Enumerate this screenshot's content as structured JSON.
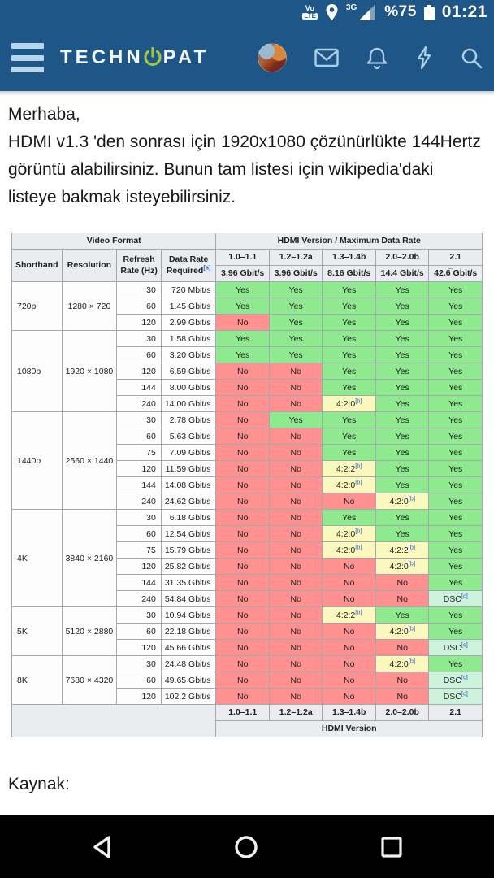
{
  "colors": {
    "app_bar_blue": "#1e5787",
    "icon_tint": "#aecfe8",
    "logo_accent": "#a4c73c",
    "wiki_link_blue": "#3366cc",
    "cell_yes_green": "#8fe98f",
    "cell_no_red": "#ff9191",
    "cell_partial_yellow": "#fbf8be",
    "cell_dsc_teal": "#cdf2dc",
    "table_header_gray": "#eaecf0",
    "table_border_gray": "#a2a9b1",
    "nav_bar_black": "#000000"
  },
  "status_bar": {
    "volte_top": "Vo",
    "volte_bottom": "LTE",
    "network_label": "3G",
    "battery_percent": "%75",
    "time": "01:21"
  },
  "app_header": {
    "brand_left": "TECHN",
    "brand_right": "PAT"
  },
  "post": {
    "greeting": "Merhaba,",
    "body": "HDMI v1.3 'den sonrası için 1920x1080 çözünürlükte 144Hertz görüntü alabilirsiniz. Bunun tam listesi için wikipedia'daki listeye bakmak isteyebilirsiniz.",
    "source_label": "Kaynak:"
  },
  "table": {
    "top_header": {
      "video_format": "Video Format",
      "hdmi": "HDMI Version / Maximum Data Rate"
    },
    "col_headers": {
      "shorthand": "Shorthand",
      "resolution": "Resolution",
      "refresh_l1": "Refresh",
      "refresh_l2": "Rate (Hz)",
      "data_rate_l1": "Data Rate",
      "data_rate_l2": "Required",
      "data_rate_sup": "[a]"
    },
    "versions": [
      "1.0–1.1",
      "1.2–1.2a",
      "1.3–1.4b",
      "2.0–2.0b",
      "2.1"
    ],
    "max_rates": [
      "3.96 Gbit/s",
      "3.96 Gbit/s",
      "8.16 Gbit/s",
      "14.4 Gbit/s",
      "42.6̅ Gbit/s"
    ],
    "cell_types": {
      "Y": {
        "label": "Yes",
        "sup": "",
        "cls": "yes"
      },
      "N": {
        "label": "No",
        "sup": "",
        "cls": "no"
      },
      "420": {
        "label": "4:2:0",
        "sup": "[b]",
        "cls": "partial"
      },
      "422": {
        "label": "4:2:2",
        "sup": "[b]",
        "cls": "partial"
      },
      "DSC": {
        "label": "DSC",
        "sup": "[c]",
        "cls": "dsc"
      }
    },
    "groups": [
      {
        "shorthand": "720p",
        "resolution": "1280 × 720",
        "rows": [
          {
            "hz": "30",
            "rate": "720 Mbit/s",
            "cells": [
              "Y",
              "Y",
              "Y",
              "Y",
              "Y"
            ]
          },
          {
            "hz": "60",
            "rate": "1.45 Gbit/s",
            "cells": [
              "Y",
              "Y",
              "Y",
              "Y",
              "Y"
            ]
          },
          {
            "hz": "120",
            "rate": "2.99 Gbit/s",
            "cells": [
              "N",
              "Y",
              "Y",
              "Y",
              "Y"
            ]
          }
        ]
      },
      {
        "shorthand": "1080p",
        "resolution": "1920 × 1080",
        "rows": [
          {
            "hz": "30",
            "rate": "1.58 Gbit/s",
            "cells": [
              "Y",
              "Y",
              "Y",
              "Y",
              "Y"
            ]
          },
          {
            "hz": "60",
            "rate": "3.20 Gbit/s",
            "cells": [
              "Y",
              "Y",
              "Y",
              "Y",
              "Y"
            ]
          },
          {
            "hz": "120",
            "rate": "6.59 Gbit/s",
            "cells": [
              "N",
              "N",
              "Y",
              "Y",
              "Y"
            ]
          },
          {
            "hz": "144",
            "rate": "8.00 Gbit/s",
            "cells": [
              "N",
              "N",
              "Y",
              "Y",
              "Y"
            ]
          },
          {
            "hz": "240",
            "rate": "14.00 Gbit/s",
            "cells": [
              "N",
              "N",
              "420",
              "Y",
              "Y"
            ]
          }
        ]
      },
      {
        "shorthand": "1440p",
        "resolution": "2560 × 1440",
        "rows": [
          {
            "hz": "30",
            "rate": "2.78 Gbit/s",
            "cells": [
              "N",
              "Y",
              "Y",
              "Y",
              "Y"
            ]
          },
          {
            "hz": "60",
            "rate": "5.63 Gbit/s",
            "cells": [
              "N",
              "N",
              "Y",
              "Y",
              "Y"
            ]
          },
          {
            "hz": "75",
            "rate": "7.09 Gbit/s",
            "cells": [
              "N",
              "N",
              "Y",
              "Y",
              "Y"
            ]
          },
          {
            "hz": "120",
            "rate": "11.59 Gbit/s",
            "cells": [
              "N",
              "N",
              "422",
              "Y",
              "Y"
            ]
          },
          {
            "hz": "144",
            "rate": "14.08 Gbit/s",
            "cells": [
              "N",
              "N",
              "420",
              "Y",
              "Y"
            ]
          },
          {
            "hz": "240",
            "rate": "24.62 Gbit/s",
            "cells": [
              "N",
              "N",
              "N",
              "420",
              "Y"
            ]
          }
        ]
      },
      {
        "shorthand": "4K",
        "resolution": "3840 × 2160",
        "rows": [
          {
            "hz": "30",
            "rate": "6.18 Gbit/s",
            "cells": [
              "N",
              "N",
              "Y",
              "Y",
              "Y"
            ]
          },
          {
            "hz": "60",
            "rate": "12.54 Gbit/s",
            "cells": [
              "N",
              "N",
              "420",
              "Y",
              "Y"
            ]
          },
          {
            "hz": "75",
            "rate": "15.79 Gbit/s",
            "cells": [
              "N",
              "N",
              "420",
              "422",
              "Y"
            ]
          },
          {
            "hz": "120",
            "rate": "25.82 Gbit/s",
            "cells": [
              "N",
              "N",
              "N",
              "420",
              "Y"
            ]
          },
          {
            "hz": "144",
            "rate": "31.35 Gbit/s",
            "cells": [
              "N",
              "N",
              "N",
              "N",
              "Y"
            ]
          },
          {
            "hz": "240",
            "rate": "54.84 Gbit/s",
            "cells": [
              "N",
              "N",
              "N",
              "N",
              "DSC"
            ]
          }
        ]
      },
      {
        "shorthand": "5K",
        "resolution": "5120 × 2880",
        "rows": [
          {
            "hz": "30",
            "rate": "10.94 Gbit/s",
            "cells": [
              "N",
              "N",
              "422",
              "Y",
              "Y"
            ]
          },
          {
            "hz": "60",
            "rate": "22.18 Gbit/s",
            "cells": [
              "N",
              "N",
              "N",
              "420",
              "Y"
            ]
          },
          {
            "hz": "120",
            "rate": "45.66 Gbit/s",
            "cells": [
              "N",
              "N",
              "N",
              "N",
              "DSC"
            ]
          }
        ]
      },
      {
        "shorthand": "8K",
        "resolution": "7680 × 4320",
        "rows": [
          {
            "hz": "30",
            "rate": "24.48 Gbit/s",
            "cells": [
              "N",
              "N",
              "N",
              "420",
              "Y"
            ]
          },
          {
            "hz": "60",
            "rate": "49.65 Gbit/s",
            "cells": [
              "N",
              "N",
              "N",
              "N",
              "DSC"
            ]
          },
          {
            "hz": "120",
            "rate": "102.2 Gbit/s",
            "cells": [
              "N",
              "N",
              "N",
              "N",
              "DSC"
            ]
          }
        ]
      }
    ],
    "footer": {
      "versions": [
        "1.0–1.1",
        "1.2–1.2a",
        "1.3–1.4b",
        "2.0–2.0b",
        "2.1"
      ],
      "caption": "HDMI Version"
    }
  }
}
